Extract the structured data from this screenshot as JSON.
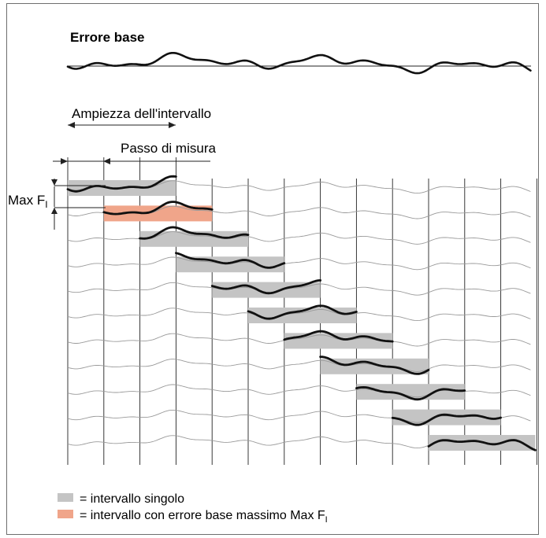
{
  "title": "Errore base",
  "labels": {
    "interval_width": "Ampiezza dell'intervallo",
    "measuring_step": "Passo di misura",
    "max_prefix": "Max F",
    "max_subscript": "I"
  },
  "legend": [
    {
      "swatch_color": "#c4c4c4",
      "text": "= intervallo singolo"
    },
    {
      "swatch_color": "#f0a58a",
      "text": "= intervallo con errore base massimo Max F",
      "subscript": "I"
    }
  ],
  "colors": {
    "interval": "#c4c4c4",
    "max_interval": "#f0a58a",
    "curve": "#111111",
    "thin_curve": "#9a9a9a",
    "grid": "#222222"
  },
  "layout_info": {
    "column_count": 13,
    "row_count": 11,
    "max_interval_row": 2
  }
}
